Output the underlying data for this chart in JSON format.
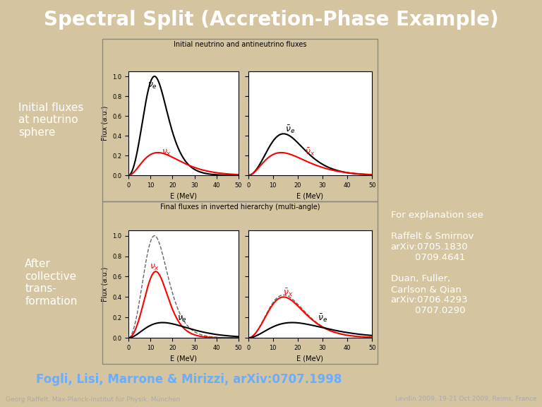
{
  "title": "Spectral Split (Accretion-Phase Example)",
  "title_color": "#ffffff",
  "title_bg": "#5a5a7a",
  "bg_color": "#d4c5a0",
  "left_panel_color": "#4a6080",
  "right_panel_color": "#5a5a6a",
  "bottom_bar_color": "#3a3a4a",
  "left_text_top": "Initial fluxes\nat neutrino\nsphere",
  "left_text_bottom": "After\ncollective\ntrans-\nformation",
  "right_text": "For explanation see\n\nRaffelt & Smirnov\narXiv:0705.1830\n        0709.4641\n\nDuan, Fuller,\nCarlson & Qian\narXiv:0706.4293\n        0707.0290",
  "bottom_text": "Fogli, Lisi, Marrone & Mirizzi, arXiv:0707.1998",
  "bottom_authors_left": "Georg Raffelt, Max-Planck-Institut für Physik, München",
  "bottom_authors_right": "Levdin 2009, 19-21 Oct 2009, Reims, France",
  "footer_bg": "#1a1a2a",
  "footer_text_color": "#aaaaaa",
  "white": "#ffffff",
  "link_color": "#6aadff"
}
